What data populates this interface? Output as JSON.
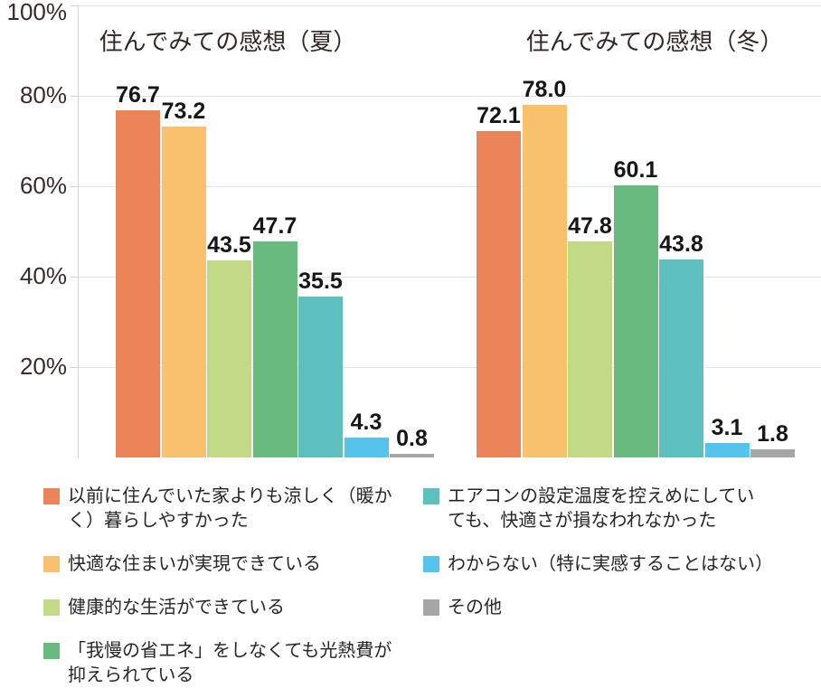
{
  "chart_data": {
    "type": "bar",
    "unit": "%",
    "ylim": [
      0,
      100
    ],
    "grid": true,
    "legend_position": "bottom",
    "y_ticks": [
      {
        "label": "100%",
        "value": 100
      },
      {
        "label": "80%",
        "value": 80
      },
      {
        "label": "60%",
        "value": 60
      },
      {
        "label": "40%",
        "value": 40
      },
      {
        "label": "20%",
        "value": 20
      }
    ],
    "categories": [
      "以前に住んでいた家よりも涼しく（暖かく）暮らしやすかった",
      "快適な住まいが実現できている",
      "健康的な生活ができている",
      "「我慢の省エネ」をしなくても光熱費が抑えられている",
      "エアコンの設定温度を控えめにしていても、快適さが損なわれなかった",
      "わからない（特に実感することはない）",
      "その他"
    ],
    "colors": [
      "#EB8458",
      "#F8C16D",
      "#C2DA86",
      "#69BA7E",
      "#5EC0BE",
      "#56C3EC",
      "#A6A6A6"
    ],
    "groups": [
      {
        "id": "summer",
        "title": "住んでみての感想（夏）",
        "values": [
          76.7,
          73.2,
          43.5,
          47.7,
          35.5,
          4.3,
          0.8
        ],
        "value_labels": [
          "76.7",
          "73.2",
          "43.5",
          "47.7",
          "35.5",
          "4.3",
          "0.8"
        ]
      },
      {
        "id": "winter",
        "title": "住んでみての感想（冬）",
        "values": [
          72.1,
          78.0,
          47.8,
          60.1,
          43.8,
          3.1,
          1.8
        ],
        "value_labels": [
          "72.1",
          "78.0",
          "47.8",
          "60.1",
          "43.8",
          "3.1",
          "1.8"
        ]
      }
    ]
  },
  "legend": {
    "columns": [
      [
        {
          "color": "#EB8458",
          "text": "以前に住んでいた家よりも涼しく（暖か\nく）暮らしやすかった"
        },
        {
          "color": "#F8C16D",
          "text": "快適な住まいが実現できている"
        },
        {
          "color": "#C2DA86",
          "text": "健康的な生活ができている"
        },
        {
          "color": "#69BA7E",
          "text": "「我慢の省エネ」をしなくても光熱費が\n抑えられている"
        }
      ],
      [
        {
          "color": "#5EC0BE",
          "text": "エアコンの設定温度を控えめにしてい\nても、快適さが損なわれなかった"
        },
        {
          "color": "#56C3EC",
          "text": "わからない（特に実感することはない）"
        },
        {
          "color": "#A6A6A6",
          "text": "その他"
        }
      ]
    ]
  },
  "palette": {
    "gridline": "#e3e3e3",
    "axis": "#d2d2d2",
    "y_label_color": "#3b2b28",
    "title_color": "#322723",
    "value_label_color": "#161616"
  }
}
